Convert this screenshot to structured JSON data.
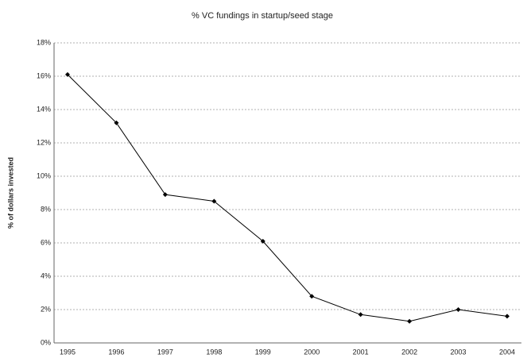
{
  "chart_data": {
    "type": "line",
    "title": "% VC fundings in startup/seed stage",
    "y_label": "% of dollars invested",
    "categories": [
      "1995",
      "1996",
      "1997",
      "1998",
      "1999",
      "2000",
      "2001",
      "2002",
      "2003",
      "2004"
    ],
    "series": [
      {
        "name": "% VC fundings in startup/seed stage",
        "color": "#000000",
        "values": [
          16.1,
          13.2,
          8.9,
          8.5,
          6.1,
          2.8,
          1.7,
          1.3,
          2.0,
          1.6
        ]
      }
    ],
    "ylim": [
      0,
      18
    ],
    "yticks": [
      {
        "value": 0,
        "label": "0%"
      },
      {
        "value": 2,
        "label": "2%"
      },
      {
        "value": 4,
        "label": "4%"
      },
      {
        "value": 6,
        "label": "6%"
      },
      {
        "value": 8,
        "label": "8%"
      },
      {
        "value": 10,
        "label": "10%"
      },
      {
        "value": 12,
        "label": "12%"
      },
      {
        "value": 14,
        "label": "14%"
      },
      {
        "value": 16,
        "label": "16%"
      },
      {
        "value": 18,
        "label": "18%"
      }
    ],
    "grid": true
  }
}
